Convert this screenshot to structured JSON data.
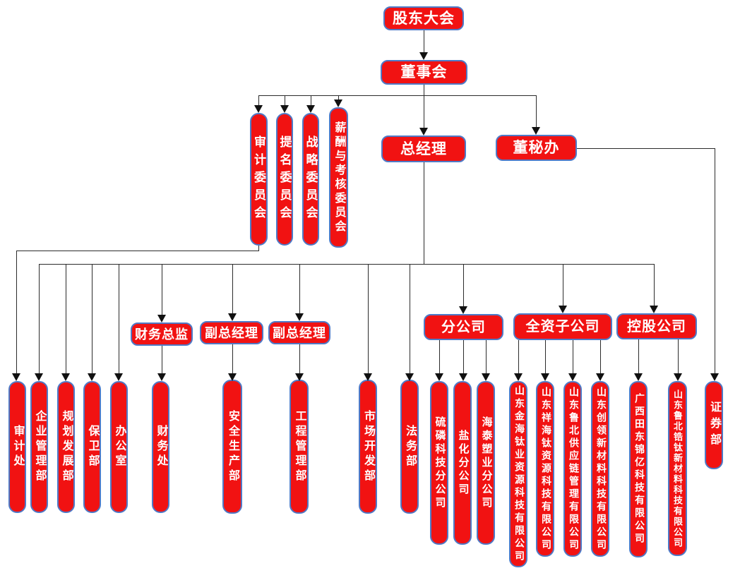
{
  "diagram": {
    "type": "organizational-chart",
    "accent_color": "#F11212",
    "node_border_color": "#4E7AC7",
    "connector_color": "#2B2B2B",
    "text_color": "#FFFFFF",
    "nodes": {
      "shareholders": "股东大会",
      "board": "董事会",
      "audit_committee": "审计委员会",
      "nomination_committee": "提名委员会",
      "strategy_committee": "战略委员会",
      "compensation_committee": "薪酬与考核委员会",
      "general_manager": "总经理",
      "board_secretary_office": "董秘办",
      "audit_office": "审计处",
      "enterprise_management": "企业管理部",
      "planning_development": "规划发展部",
      "security_dept": "保卫部",
      "general_office": "办公室",
      "cfo": "财务总监",
      "finance_office": "财务处",
      "deputy_gm_1": "副总经理",
      "deputy_gm_2": "副总经理",
      "safety_production": "安全生产部",
      "engineering_management": "工程管理部",
      "market_development": "市场开发部",
      "legal_dept": "法务部",
      "branch_companies": "分公司",
      "sulfur_phosphorus_branch": "硫磷科技分公司",
      "salt_chemical_branch": "盐化分公司",
      "haitai_plastics_branch": "海泰塑业分公司",
      "wholly_owned_subsidiaries": "全资子公司",
      "jinhai_titanium": "山东金海钛业资源科技有限公司",
      "xianghai_titanium": "山东祥海钛资源科技有限公司",
      "lubei_supply_chain": "山东鲁北供应链管理有限公司",
      "chuangling_materials": "山东创领新材料科技有限公司",
      "holding_companies": "控股公司",
      "guangxi_jinyi": "广西田东锦亿科技有限公司",
      "lubei_zirconium_titanium": "山东鲁北锆钛新材料科技有限公司",
      "securities_dept": "证券部"
    }
  }
}
